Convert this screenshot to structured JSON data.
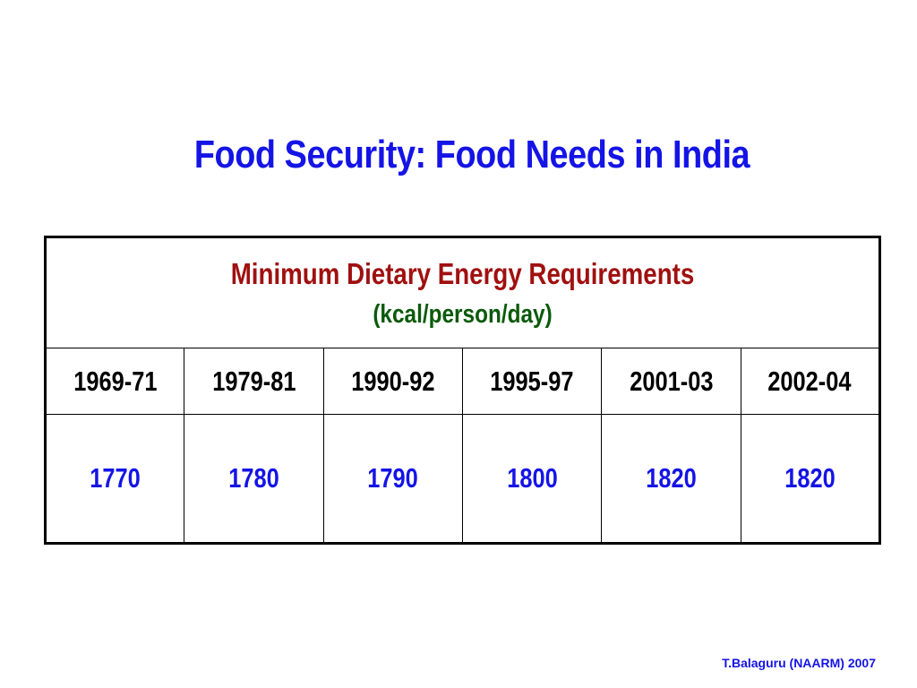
{
  "slide": {
    "title": "Food Security: Food Needs in India",
    "footer": "T.Balaguru (NAARM) 2007"
  },
  "table": {
    "header": "Minimum Dietary Energy Requirements",
    "unit": "(kcal/person/day)",
    "periods": [
      "1969-71",
      "1979-81",
      "1990-92",
      "1995-97",
      "2001-03",
      "2002-04"
    ],
    "values": [
      "1770",
      "1780",
      "1790",
      "1800",
      "1820",
      "1820"
    ]
  },
  "colors": {
    "title": "#1414e6",
    "header": "#a01010",
    "unit": "#0b5a0b",
    "values": "#1414e6"
  }
}
